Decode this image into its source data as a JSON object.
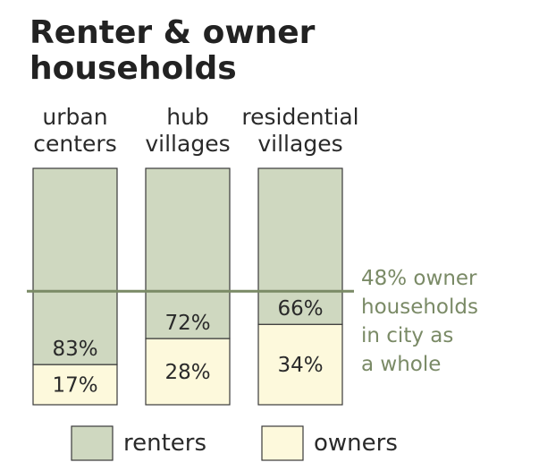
{
  "chart_data": {
    "type": "bar",
    "stacked": true,
    "title_lines": [
      "Renter & owner",
      "households"
    ],
    "categories": [
      [
        "urban",
        "centers"
      ],
      [
        "hub",
        "villages"
      ],
      [
        "residential",
        "villages"
      ]
    ],
    "series": [
      {
        "name": "renters",
        "values": [
          83,
          72,
          66
        ],
        "labels": [
          "83%",
          "72%",
          "66%"
        ],
        "color": "#cfd8c0"
      },
      {
        "name": "owners",
        "values": [
          17,
          28,
          34
        ],
        "labels": [
          "17%",
          "28%",
          "34%"
        ],
        "color": "#fdf9dc"
      }
    ],
    "ylim": [
      0,
      100
    ],
    "reference_line": {
      "value": 48,
      "label_lines": [
        "48% owner",
        "households",
        "in city as",
        "a whole"
      ],
      "color": "#7a8a66"
    },
    "legend": {
      "position": "bottom",
      "items": [
        "renters",
        "owners"
      ]
    },
    "grid": false
  }
}
